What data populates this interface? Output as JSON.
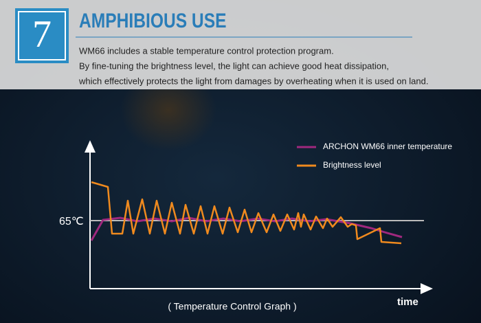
{
  "header": {
    "number": "7",
    "title": "AMPHIBIOUS USE",
    "description": [
      "WM66 includes a stable temperature control protection program.",
      "By fine-tuning the brightness level, the light can achieve good heat dissipation,",
      "which effectively protects the light from damages by overheating when it is used on land."
    ]
  },
  "graph": {
    "legend": [
      "ARCHON WM66 inner temperature",
      "Brightness level"
    ],
    "reference_label": "65℃",
    "x_axis_label": "time",
    "caption": "( Temperature Control Graph )"
  }
}
